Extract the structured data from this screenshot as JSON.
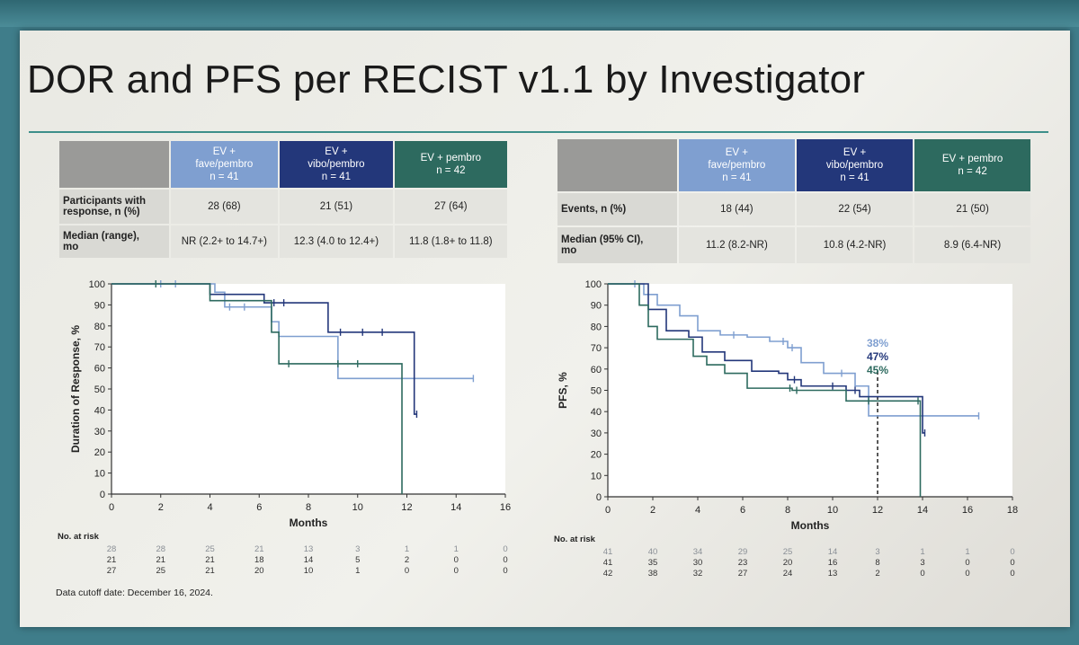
{
  "title": "DOR and PFS per RECIST v1.1 by Investigator",
  "footnote": "Data cutoff date: December 16, 2024.",
  "colors": {
    "ev_fave": "#7f9fd0",
    "ev_vibo": "#23377a",
    "ev_pembro": "#2d6a5f"
  },
  "left_table": {
    "headers": [
      {
        "line1": "EV +",
        "line2": "fave/pembro",
        "line3": "n = 41"
      },
      {
        "line1": "EV +",
        "line2": "vibo/pembro",
        "line3": "n = 41"
      },
      {
        "line1": "EV + pembro",
        "line2": "n = 42",
        "line3": ""
      }
    ],
    "rows": [
      {
        "label1": "Participants with",
        "label2": "response, n (%)",
        "cells": [
          "28 (68)",
          "21 (51)",
          "27 (64)"
        ]
      },
      {
        "label1": "Median (range),",
        "label2": "mo",
        "cells": [
          "NR (2.2+ to 14.7+)",
          "12.3 (4.0 to 12.4+)",
          "11.8 (1.8+ to 11.8)"
        ]
      }
    ]
  },
  "right_table": {
    "headers": [
      {
        "line1": "EV +",
        "line2": "fave/pembro",
        "line3": "n = 41"
      },
      {
        "line1": "EV +",
        "line2": "vibo/pembro",
        "line3": "n = 41"
      },
      {
        "line1": "EV + pembro",
        "line2": "n = 42",
        "line3": ""
      }
    ],
    "rows": [
      {
        "label1": "Events, n (%)",
        "label2": "",
        "cells": [
          "18 (44)",
          "22 (54)",
          "21 (50)"
        ]
      },
      {
        "label1": "Median (95% CI),",
        "label2": "mo",
        "cells": [
          "11.2 (8.2-NR)",
          "10.8 (4.2-NR)",
          "8.9 (6.4-NR)"
        ]
      }
    ]
  },
  "chart_data": [
    {
      "type": "line",
      "step": true,
      "xlabel": "Months",
      "ylabel": "Duration of Response, %",
      "xlim": [
        0,
        16
      ],
      "ylim": [
        0,
        100
      ],
      "xticks": [
        0,
        2,
        4,
        6,
        8,
        10,
        12,
        14,
        16
      ],
      "yticks": [
        0,
        10,
        20,
        30,
        40,
        50,
        60,
        70,
        80,
        90,
        100
      ],
      "risk_label": "No. at risk",
      "risk_table": [
        [
          "28",
          "28",
          "25",
          "21",
          "13",
          "3",
          "1",
          "1",
          "0"
        ],
        [
          "21",
          "21",
          "21",
          "18",
          "14",
          "5",
          "2",
          "0",
          "0"
        ],
        [
          "27",
          "25",
          "21",
          "20",
          "10",
          "1",
          "0",
          "0",
          "0"
        ]
      ],
      "series": [
        {
          "color": "#7f9fd0",
          "x": [
            0,
            4.2,
            4.6,
            6.5,
            6.8,
            9.0,
            9.2,
            14.7
          ],
          "y": [
            100,
            96,
            89,
            82,
            75,
            75,
            55,
            55
          ],
          "censors": [
            [
              2,
              100
            ],
            [
              2.6,
              100
            ],
            [
              4.8,
              89
            ],
            [
              5.4,
              89
            ],
            [
              12.3,
              55
            ],
            [
              14.7,
              55
            ]
          ]
        },
        {
          "color": "#23377a",
          "x": [
            0,
            4.0,
            6.2,
            8.8,
            12.3,
            12.4
          ],
          "y": [
            100,
            95,
            91,
            77,
            38,
            38
          ],
          "censors": [
            [
              6.6,
              91
            ],
            [
              7.0,
              91
            ],
            [
              9.3,
              77
            ],
            [
              10.2,
              77
            ],
            [
              11.0,
              77
            ],
            [
              12.4,
              38
            ]
          ]
        },
        {
          "color": "#2d6a5f",
          "x": [
            0,
            1.8,
            4.0,
            6.5,
            6.8,
            9.0,
            11.8
          ],
          "y": [
            100,
            100,
            92,
            77,
            62,
            62,
            0
          ],
          "censors": [
            [
              1.8,
              100
            ],
            [
              7.2,
              62
            ],
            [
              9.2,
              62
            ],
            [
              10.0,
              62
            ]
          ]
        }
      ]
    },
    {
      "type": "line",
      "step": true,
      "xlabel": "Months",
      "ylabel": "PFS, %",
      "xlim": [
        0,
        18
      ],
      "ylim": [
        0,
        100
      ],
      "xticks": [
        0,
        2,
        4,
        6,
        8,
        10,
        12,
        14,
        16,
        18
      ],
      "yticks": [
        0,
        10,
        20,
        30,
        40,
        50,
        60,
        70,
        80,
        90,
        100
      ],
      "annotations": [
        "38%",
        "47%",
        "45%"
      ],
      "marker_x": 12,
      "risk_label": "No. at risk",
      "risk_table": [
        [
          "41",
          "40",
          "34",
          "29",
          "25",
          "14",
          "3",
          "1",
          "1",
          "0"
        ],
        [
          "41",
          "35",
          "30",
          "23",
          "20",
          "16",
          "8",
          "3",
          "0",
          "0"
        ],
        [
          "42",
          "38",
          "32",
          "27",
          "24",
          "13",
          "2",
          "0",
          "0",
          "0"
        ]
      ],
      "series": [
        {
          "color": "#7f9fd0",
          "x": [
            0,
            1.6,
            2.2,
            3.2,
            4.0,
            5.0,
            6.2,
            7.2,
            8.0,
            8.6,
            9.6,
            11.0,
            11.6,
            14.0,
            16.5
          ],
          "y": [
            100,
            95,
            90,
            85,
            78,
            76,
            75,
            73,
            70,
            63,
            58,
            52,
            38,
            38,
            38
          ],
          "censors": [
            [
              1.2,
              100
            ],
            [
              5.6,
              76
            ],
            [
              7.8,
              73
            ],
            [
              8.2,
              70
            ],
            [
              10.4,
              58
            ],
            [
              16.5,
              38
            ]
          ]
        },
        {
          "color": "#23377a",
          "x": [
            0,
            1.8,
            2.6,
            3.6,
            4.2,
            5.2,
            6.4,
            7.6,
            8.0,
            8.6,
            10.6,
            11.2,
            14.0,
            14.1
          ],
          "y": [
            100,
            88,
            78,
            75,
            68,
            64,
            59,
            58,
            55,
            52,
            50,
            47,
            30,
            30
          ],
          "censors": [
            [
              8.3,
              55
            ],
            [
              10.0,
              52
            ],
            [
              11.0,
              50
            ],
            [
              14.1,
              30
            ]
          ]
        },
        {
          "color": "#2d6a5f",
          "x": [
            0,
            1.4,
            1.8,
            2.2,
            3.8,
            4.4,
            5.2,
            6.2,
            8.2,
            10.6,
            13.9
          ],
          "y": [
            100,
            90,
            80,
            74,
            66,
            62,
            58,
            51,
            50,
            45,
            0
          ],
          "censors": [
            [
              8.1,
              51
            ],
            [
              8.4,
              50
            ],
            [
              11.6,
              45
            ],
            [
              13.8,
              45
            ]
          ]
        }
      ]
    }
  ]
}
